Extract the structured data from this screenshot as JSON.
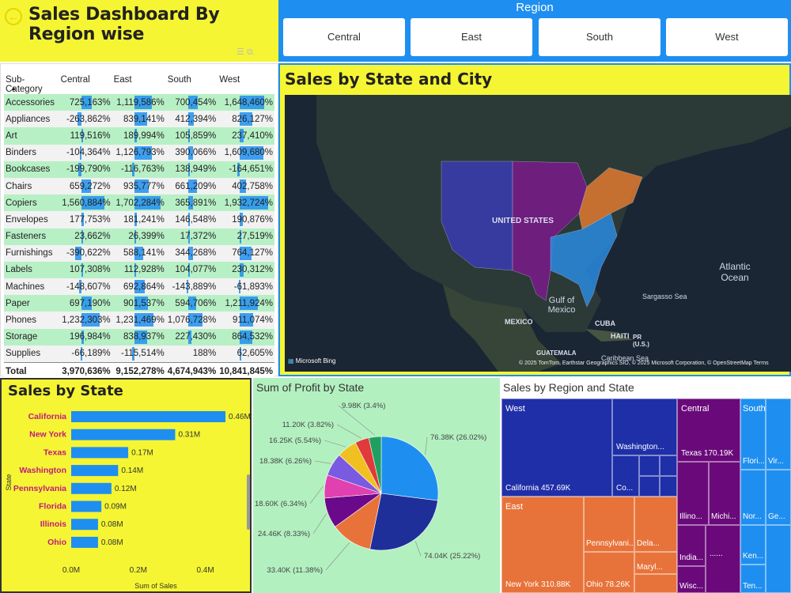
{
  "header": {
    "title": "Sales Dashboard By Region wise",
    "back_icon": "back-arrow-icon"
  },
  "region_slicer": {
    "title": "Region",
    "options": [
      "Central",
      "East",
      "South",
      "West"
    ]
  },
  "matrix": {
    "columns": [
      "Sub-Category",
      "Central",
      "East",
      "South",
      "West"
    ],
    "rows": [
      {
        "name": "Accessories",
        "values": [
          "725,163%",
          "1,119,586%",
          "700,454%",
          "1,648,460%"
        ],
        "bars": [
          0.38,
          0.59,
          0.37,
          0.85
        ]
      },
      {
        "name": "Appliances",
        "values": [
          "-263,862%",
          "839,141%",
          "412,394%",
          "826,127%"
        ],
        "bars": [
          -0.14,
          0.44,
          0.22,
          0.43
        ]
      },
      {
        "name": "Art",
        "values": [
          "119,516%",
          "189,994%",
          "105,859%",
          "237,410%"
        ],
        "bars": [
          0.06,
          0.1,
          0.06,
          0.12
        ]
      },
      {
        "name": "Binders",
        "values": [
          "-104,364%",
          "1,126,793%",
          "390,066%",
          "1,609,680%"
        ],
        "bars": [
          -0.05,
          0.59,
          0.2,
          0.83
        ]
      },
      {
        "name": "Bookcases",
        "values": [
          "-199,790%",
          "-116,763%",
          "138,949%",
          "-164,651%"
        ],
        "bars": [
          -0.1,
          -0.06,
          0.07,
          -0.09
        ]
      },
      {
        "name": "Chairs",
        "values": [
          "659,272%",
          "935,777%",
          "661,209%",
          "402,758%"
        ],
        "bars": [
          0.34,
          0.49,
          0.35,
          0.21
        ]
      },
      {
        "name": "Copiers",
        "values": [
          "1,560,884%",
          "1,702,284%",
          "365,891%",
          "1,932,724%"
        ],
        "bars": [
          0.81,
          0.88,
          0.19,
          1.0
        ]
      },
      {
        "name": "Envelopes",
        "values": [
          "177,753%",
          "181,241%",
          "146,548%",
          "190,876%"
        ],
        "bars": [
          0.09,
          0.09,
          0.08,
          0.1
        ]
      },
      {
        "name": "Fasteners",
        "values": [
          "23,662%",
          "26,399%",
          "17,372%",
          "27,519%"
        ],
        "bars": [
          0.01,
          0.01,
          0.01,
          0.01
        ]
      },
      {
        "name": "Furnishings",
        "values": [
          "-390,622%",
          "588,141%",
          "344,268%",
          "764,127%"
        ],
        "bars": [
          -0.2,
          0.31,
          0.18,
          0.4
        ]
      },
      {
        "name": "Labels",
        "values": [
          "107,308%",
          "112,928%",
          "104,077%",
          "230,312%"
        ],
        "bars": [
          0.06,
          0.06,
          0.05,
          0.12
        ]
      },
      {
        "name": "Machines",
        "values": [
          "-148,607%",
          "692,864%",
          "-143,889%",
          "-61,893%"
        ],
        "bars": [
          -0.08,
          0.36,
          -0.07,
          -0.03
        ]
      },
      {
        "name": "Paper",
        "values": [
          "697,190%",
          "901,537%",
          "594,706%",
          "1,211,924%"
        ],
        "bars": [
          0.36,
          0.47,
          0.31,
          0.63
        ]
      },
      {
        "name": "Phones",
        "values": [
          "1,232,303%",
          "1,231,469%",
          "1,076,728%",
          "911,074%"
        ],
        "bars": [
          0.64,
          0.64,
          0.56,
          0.47
        ]
      },
      {
        "name": "Storage",
        "values": [
          "196,984%",
          "838,937%",
          "227,430%",
          "864,532%"
        ],
        "bars": [
          0.1,
          0.43,
          0.12,
          0.45
        ]
      },
      {
        "name": "Supplies",
        "values": [
          "-66,189%",
          "-115,514%",
          "188%",
          "62,605%"
        ],
        "bars": [
          -0.03,
          -0.06,
          0.0,
          0.03
        ]
      }
    ],
    "total": {
      "name": "Total",
      "values": [
        "3,970,636%",
        "9,152,278%",
        "4,674,943%",
        "10,841,845%"
      ]
    }
  },
  "map": {
    "title": "Sales by State and City",
    "labels": {
      "country": "UNITED STATES",
      "gulf": "Gulf of Mexico",
      "atlantic": "Atlantic Ocean",
      "sargasso": "Sargasso Sea",
      "mexico": "MEXICO",
      "cuba": "CUBA",
      "haiti": "HAITI",
      "pr": "PR (U.S.)",
      "guatemala": "GUATEMALA",
      "caribbean": "Caribbean Sea"
    },
    "bing": "Microsoft Bing",
    "copyright": "© 2025 TomTom, Earthstar Geographics SIO, © 2025 Microsoft Corporation, © OpenStreetMap  Terms",
    "region_colors": {
      "West": "#3a3ab0",
      "Central": "#7a1a8a",
      "East": "#e07a30",
      "South": "#2a8ae0"
    }
  },
  "sales_by_state": {
    "title": "Sales by State",
    "chart_data": {
      "type": "bar",
      "orientation": "horizontal",
      "categories": [
        "California",
        "New York",
        "Texas",
        "Washington",
        "Pennsylvania",
        "Florida",
        "Illinois",
        "Ohio"
      ],
      "values": [
        0.46,
        0.31,
        0.17,
        0.14,
        0.12,
        0.09,
        0.08,
        0.08
      ],
      "data_labels": [
        "0.46M",
        "0.31M",
        "0.17M",
        "0.14M",
        "0.12M",
        "0.09M",
        "0.08M",
        "0.08M"
      ],
      "xlabel": "Sum of Sales",
      "ylabel": "State",
      "x_ticks": [
        "0.0M",
        "0.2M",
        "0.4M"
      ],
      "xlim": [
        0,
        0.5
      ],
      "color": "#1e8ff0"
    }
  },
  "profit_by_state": {
    "title": "Sum of Profit by State",
    "chart_data": {
      "type": "pie",
      "labels": [
        "76.38K (26.02%)",
        "74.04K (25.22%)",
        "33.40K (11.38%)",
        "24.46K (8.33%)",
        "18.60K (6.34%)",
        "18.38K (6.26%)",
        "16.25K (5.54%)",
        "11.20K (3.82%)",
        "9.98K (3.4%)"
      ],
      "values": [
        76.38,
        74.04,
        33.4,
        24.46,
        18.6,
        18.38,
        16.25,
        11.2,
        9.98
      ],
      "colors": [
        "#1e8ff0",
        "#1f2f9a",
        "#e8733a",
        "#6a0a8a",
        "#e040b0",
        "#7a5ae0",
        "#f0c020",
        "#e03a3a",
        "#20a060"
      ]
    }
  },
  "treemap": {
    "title": "Sales by Region and State",
    "regions": [
      "West",
      "Central",
      "South",
      "East"
    ],
    "labels": {
      "california": "California 457.69K",
      "washington": "Washington...",
      "co": "Co...",
      "texas": "Texas 170.19K",
      "illinois": "Illino...",
      "michigan": "Michi...",
      "indiana": "India...",
      "wisconsin": "Wisc...",
      "dots": "......",
      "florida": "Flori...",
      "virginia": "Vir...",
      "northcarolina": "Nor...",
      "georgia": "Ge...",
      "kentucky": "Ken...",
      "tennessee": "Ten...",
      "newyork": "New York 310.88K",
      "pennsylvania": "Pennsylvani...",
      "delaware": "Dela...",
      "maryland": "Maryl...",
      "ohio": "Ohio 78.26K"
    }
  }
}
